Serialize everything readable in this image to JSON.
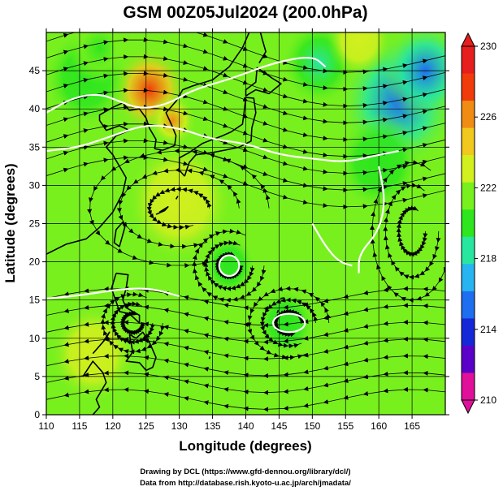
{
  "chart_data": {
    "type": "heatmap",
    "title": "GSM 00Z05Jul2024 (200.0hPa)",
    "xlabel": "Longitude (degrees)",
    "ylabel": "Latitude  (degrees)",
    "xlim": [
      110,
      170
    ],
    "ylim": [
      0,
      50
    ],
    "x_ticks": [
      "110",
      "115",
      "120",
      "125",
      "130",
      "135",
      "140",
      "145",
      "150",
      "155",
      "160",
      "165"
    ],
    "y_ticks": [
      "0",
      "5",
      "10",
      "15",
      "20",
      "25",
      "30",
      "35",
      "40",
      "45"
    ],
    "colorbar": {
      "min": 210,
      "max": 230,
      "ticks": [
        "230",
        "226",
        "222",
        "218",
        "214",
        "210"
      ],
      "colors": [
        "#e0109a",
        "#5a00c8",
        "#1428d8",
        "#1e6ef0",
        "#28b4f0",
        "#28e6a0",
        "#2ee61e",
        "#78f01e",
        "#d2f01e",
        "#f0c81e",
        "#f08c14",
        "#f03c0a",
        "#e61e1e"
      ]
    },
    "fields": {
      "background": 222,
      "features": [
        {
          "lon": 125.5,
          "lat": 42.5,
          "value": 229,
          "radius": 3.5
        },
        {
          "lon": 129,
          "lat": 38.5,
          "value": 226,
          "radius": 2.2
        },
        {
          "lon": 163,
          "lat": 41,
          "value": 215.5,
          "radius": 5.5
        },
        {
          "lon": 167,
          "lat": 45,
          "value": 215,
          "radius": 4
        },
        {
          "lon": 151,
          "lat": 46,
          "value": 218.5,
          "radius": 3.5
        },
        {
          "lon": 116,
          "lat": 44,
          "value": 219.5,
          "radius": 4
        },
        {
          "lon": 118,
          "lat": 48,
          "value": 220,
          "radius": 3
        },
        {
          "lon": 160,
          "lat": 33,
          "value": 219.5,
          "radius": 4
        },
        {
          "lon": 157,
          "lat": 49,
          "value": 224,
          "radius": 3
        },
        {
          "lon": 146,
          "lat": 12,
          "value": 219.5,
          "radius": 2.8
        },
        {
          "lon": 137.5,
          "lat": 19.5,
          "value": 219.5,
          "radius": 2.5
        },
        {
          "lon": 130,
          "lat": 28,
          "value": 223,
          "radius": 5
        },
        {
          "lon": 117,
          "lat": 8,
          "value": 223,
          "radius": 4
        }
      ],
      "contours": [
        {
          "value": "222",
          "points": [
            [
              110,
              34.5
            ],
            [
              115,
              35
            ],
            [
              120,
              36.5
            ],
            [
              125,
              38
            ],
            [
              130,
              37.5
            ],
            [
              135,
              36
            ],
            [
              140,
              35.5
            ],
            [
              145,
              34
            ],
            [
              150,
              33.5
            ],
            [
              155,
              33
            ],
            [
              160,
              34
            ],
            [
              163,
              34.5
            ]
          ]
        },
        {
          "value": "220",
          "points": [
            [
              110,
              39.5
            ],
            [
              114,
              41.5
            ],
            [
              118,
              42
            ],
            [
              121,
              41
            ],
            [
              124,
              40
            ],
            [
              128,
              40.5
            ],
            [
              132,
              42.5
            ],
            [
              138,
              44
            ],
            [
              144,
              46
            ],
            [
              150,
              47
            ],
            [
              152,
              45.5
            ]
          ]
        },
        {
          "value": "220",
          "points": [
            [
              110,
              15.2
            ],
            [
              114,
              15.5
            ],
            [
              118,
              16
            ],
            [
              122,
              16.5
            ],
            [
              126,
              16.5
            ],
            [
              130,
              15.5
            ]
          ]
        },
        {
          "value": "",
          "points": [
            [
              160,
              32.5
            ],
            [
              161,
              28
            ],
            [
              160,
              24
            ],
            [
              157,
              21
            ],
            [
              157,
              18.5
            ]
          ]
        },
        {
          "value": "",
          "points": [
            [
              150,
              25
            ],
            [
              152,
              22
            ],
            [
              154,
              20
            ],
            [
              156,
              19.5
            ]
          ]
        }
      ],
      "ellipses": [
        {
          "lon": 137.5,
          "lat": 19.5,
          "rlon": 1.0,
          "rlat": 0.9
        },
        {
          "lon": 146.5,
          "lat": 12,
          "rlon": 1.6,
          "rlat": 0.8
        }
      ]
    }
  },
  "credits": {
    "line1": "Drawing by DCL (https://www.gfd-dennou.org/library/dcl/)",
    "line2": "Data from http://database.rish.kyoto-u.ac.jp/arch/jmadata/"
  }
}
